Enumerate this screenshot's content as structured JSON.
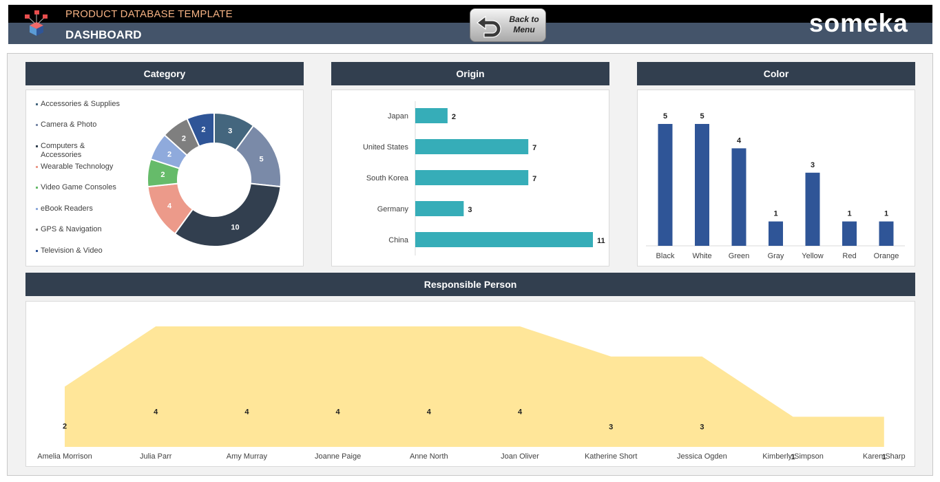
{
  "header": {
    "app_title": "PRODUCT DATABASE TEMPLATE",
    "page_title": "DASHBOARD",
    "back_button_line1": "Back to",
    "back_button_line2": "Menu",
    "brand": "someka",
    "logo_icon": "cube-network-icon",
    "back_icon": "u-turn-arrow-icon"
  },
  "colors": {
    "header_dark": "#000000",
    "header_slate": "#44546a",
    "title_orange": "#f4b183",
    "panel_head": "#323f4f",
    "origin_bar": "#36adb8",
    "color_bar": "#2f5597",
    "area_fill": "#ffe699"
  },
  "chart_data": [
    {
      "type": "pie",
      "title": "Category",
      "categories": [
        "Accessories & Supplies",
        "Camera & Photo",
        "Computers & Accessories",
        "Wearable Technology",
        "Video Game Consoles",
        "eBook Readers",
        "GPS & Navigation",
        "Television & Video"
      ],
      "values": [
        3,
        5,
        10,
        4,
        2,
        2,
        2,
        2
      ],
      "colors": [
        "#44667e",
        "#7a8aa8",
        "#323f4f",
        "#ec9a8a",
        "#66bb6a",
        "#8faadc",
        "#7f7f7f",
        "#2f5597"
      ],
      "legend": "left",
      "donut": true
    },
    {
      "type": "bar",
      "orientation": "horizontal",
      "title": "Origin",
      "categories": [
        "Japan",
        "United States",
        "South Korea",
        "Germany",
        "China"
      ],
      "values": [
        2,
        7,
        7,
        3,
        11
      ],
      "xlim": [
        0,
        11
      ]
    },
    {
      "type": "bar",
      "title": "Color",
      "categories": [
        "Black",
        "White",
        "Green",
        "Gray",
        "Yellow",
        "Red",
        "Orange"
      ],
      "values": [
        5,
        5,
        4,
        1,
        3,
        1,
        1
      ],
      "ylim": [
        0,
        5
      ]
    },
    {
      "type": "area",
      "title": "Responsible Person",
      "categories": [
        "Amelia Morrison",
        "Julia Parr",
        "Amy Murray",
        "Joanne Paige",
        "Anne North",
        "Joan Oliver",
        "Katherine Short",
        "Jessica Ogden",
        "Kimberly Simpson",
        "Karen Sharp"
      ],
      "values": [
        2,
        4,
        4,
        4,
        4,
        4,
        3,
        3,
        1,
        1
      ],
      "ylim": [
        0,
        4
      ]
    }
  ]
}
